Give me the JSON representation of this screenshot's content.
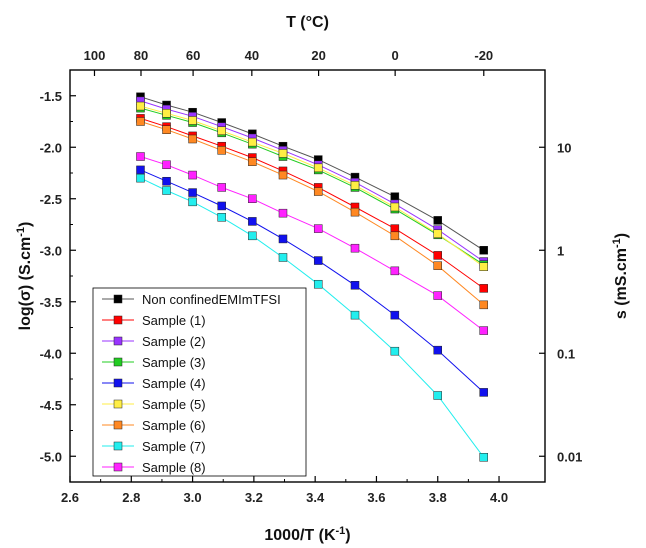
{
  "chart_data": {
    "type": "line",
    "xlabel": "1000/T (K",
    "xlabel_sup": "-1",
    "xlabel_end": ")",
    "ylabel": "log(σ) (S.cm",
    "ylabel_sup": "-1",
    "ylabel_end": ")",
    "x2label": "T (°C)",
    "y2label": "s (mS.cm",
    "y2label_sup": "-1",
    "y2label_end": ")",
    "xlim": [
      2.6,
      4.15
    ],
    "ylim": [
      -5.25,
      -1.25
    ],
    "x_ticks": [
      2.6,
      2.8,
      3.0,
      3.2,
      3.4,
      3.6,
      3.8,
      4.0
    ],
    "x_tick_labels": [
      "2.6",
      "2.8",
      "3.0",
      "3.2",
      "3.4",
      "3.6",
      "3.8",
      "4.0"
    ],
    "y_ticks": [
      -1.5,
      -2.0,
      -2.5,
      -3.0,
      -3.5,
      -4.0,
      -4.5,
      -5.0
    ],
    "y_tick_labels": [
      "-1.5",
      "-2.0",
      "-2.5",
      "-3.0",
      "-3.5",
      "-4.0",
      "-4.5",
      "-5.0"
    ],
    "top_ticks_celsius": [
      100,
      80,
      60,
      40,
      20,
      0,
      -20
    ],
    "top_tick_labels": [
      "100",
      "80",
      "60",
      "40",
      "20",
      "0",
      "-20"
    ],
    "right_ticks_log": [
      1,
      0,
      -1,
      -2
    ],
    "right_tick_labels": [
      "10",
      "1",
      "0.1",
      "0.01"
    ],
    "grid": false,
    "legend_position": "bottom-left",
    "x": [
      2.83,
      2.915,
      3.0,
      3.095,
      3.195,
      3.295,
      3.41,
      3.53,
      3.66,
      3.8,
      3.95
    ],
    "series": [
      {
        "name": "Non confinedEMImTFSI",
        "color": "#000000",
        "line_color": "#555555",
        "values": [
          -1.51,
          -1.59,
          -1.66,
          -1.76,
          -1.87,
          -1.99,
          -2.12,
          -2.29,
          -2.48,
          -2.71,
          -3.0
        ]
      },
      {
        "name": "Sample (1)",
        "color": "#ff0000",
        "values": [
          -1.72,
          -1.8,
          -1.89,
          -1.99,
          -2.1,
          -2.23,
          -2.39,
          -2.58,
          -2.79,
          -3.05,
          -3.37
        ]
      },
      {
        "name": "Sample (2)",
        "color": "#9933ff",
        "values": [
          -1.55,
          -1.63,
          -1.7,
          -1.8,
          -1.91,
          -2.03,
          -2.17,
          -2.34,
          -2.55,
          -2.8,
          -3.11
        ]
      },
      {
        "name": "Sample (3)",
        "color": "#22cc22",
        "values": [
          -1.62,
          -1.69,
          -1.76,
          -1.86,
          -1.97,
          -2.09,
          -2.22,
          -2.39,
          -2.6,
          -2.85,
          -3.14
        ]
      },
      {
        "name": "Sample (4)",
        "color": "#1111ee",
        "values": [
          -2.22,
          -2.33,
          -2.44,
          -2.57,
          -2.72,
          -2.89,
          -3.1,
          -3.34,
          -3.63,
          -3.97,
          -4.38
        ]
      },
      {
        "name": "Sample (5)",
        "color": "#ffee44",
        "values": [
          -1.6,
          -1.67,
          -1.74,
          -1.84,
          -1.95,
          -2.06,
          -2.2,
          -2.37,
          -2.58,
          -2.84,
          -3.16
        ]
      },
      {
        "name": "Sample (6)",
        "color": "#ff8822",
        "values": [
          -1.75,
          -1.83,
          -1.92,
          -2.03,
          -2.14,
          -2.27,
          -2.43,
          -2.63,
          -2.86,
          -3.15,
          -3.53
        ]
      },
      {
        "name": "Sample (7)",
        "color": "#22eeee",
        "values": [
          -2.3,
          -2.42,
          -2.53,
          -2.68,
          -2.86,
          -3.07,
          -3.33,
          -3.63,
          -3.98,
          -4.41,
          -5.01
        ]
      },
      {
        "name": "Sample (8)",
        "color": "#ff22ff",
        "values": [
          -2.09,
          -2.17,
          -2.27,
          -2.39,
          -2.5,
          -2.64,
          -2.79,
          -2.98,
          -3.2,
          -3.44,
          -3.78
        ]
      }
    ]
  }
}
